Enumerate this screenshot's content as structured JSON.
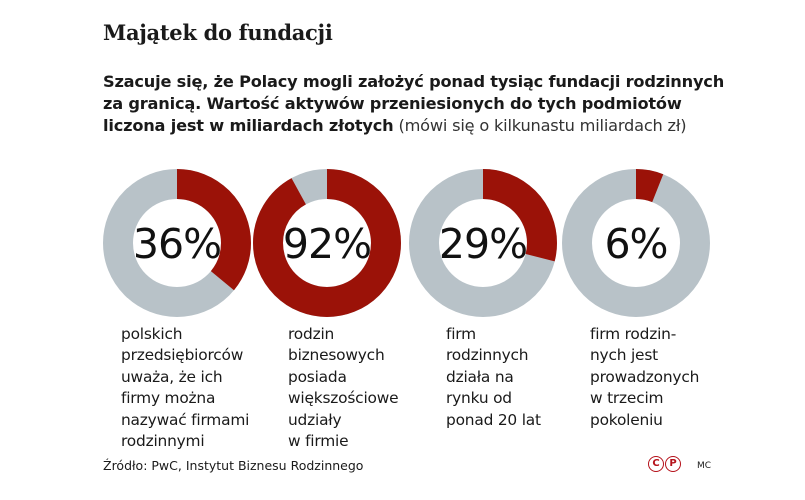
{
  "title": "Majątek do fundacji",
  "intro": {
    "bold_text": "Szacuje się, że Polacy mogli założyć ponad tysiąc fundacji rodzinnych za granicą. Wartość aktywów przeniesionych do tych podmiotów liczona jest w miliardach złotych",
    "note": "(mówi się o kilkunastu miliardach zł)"
  },
  "colors": {
    "accent": "#9b1208",
    "remainder": "#b8c2c8"
  },
  "chart_data": {
    "type": "pie",
    "subtype": "donut",
    "items": [
      {
        "value": 36,
        "label": "36%",
        "description": [
          "polskich",
          "przedsiębiorców",
          "uważa, że ich",
          "firmy można",
          "nazywać firmami",
          "rodzinnymi"
        ]
      },
      {
        "value": 92,
        "label": "92%",
        "description": [
          "rodzin",
          "biznesowych",
          "posiada",
          "większościowe",
          "udziały",
          "w firmie"
        ]
      },
      {
        "value": 29,
        "label": "29%",
        "description": [
          "firm",
          "rodzinnych",
          "działa na",
          "rynku od",
          "ponad 20 lat"
        ]
      },
      {
        "value": 6,
        "label": "6%",
        "description": [
          "firm rodzin-",
          "nych jest",
          "prowadzonych",
          "w trzecim",
          "pokoleniu"
        ]
      }
    ]
  },
  "source": "Źródło: PwC, Instytut Biznesu Rodzinnego",
  "logo_letters": [
    "C",
    "P"
  ],
  "author": "MC"
}
